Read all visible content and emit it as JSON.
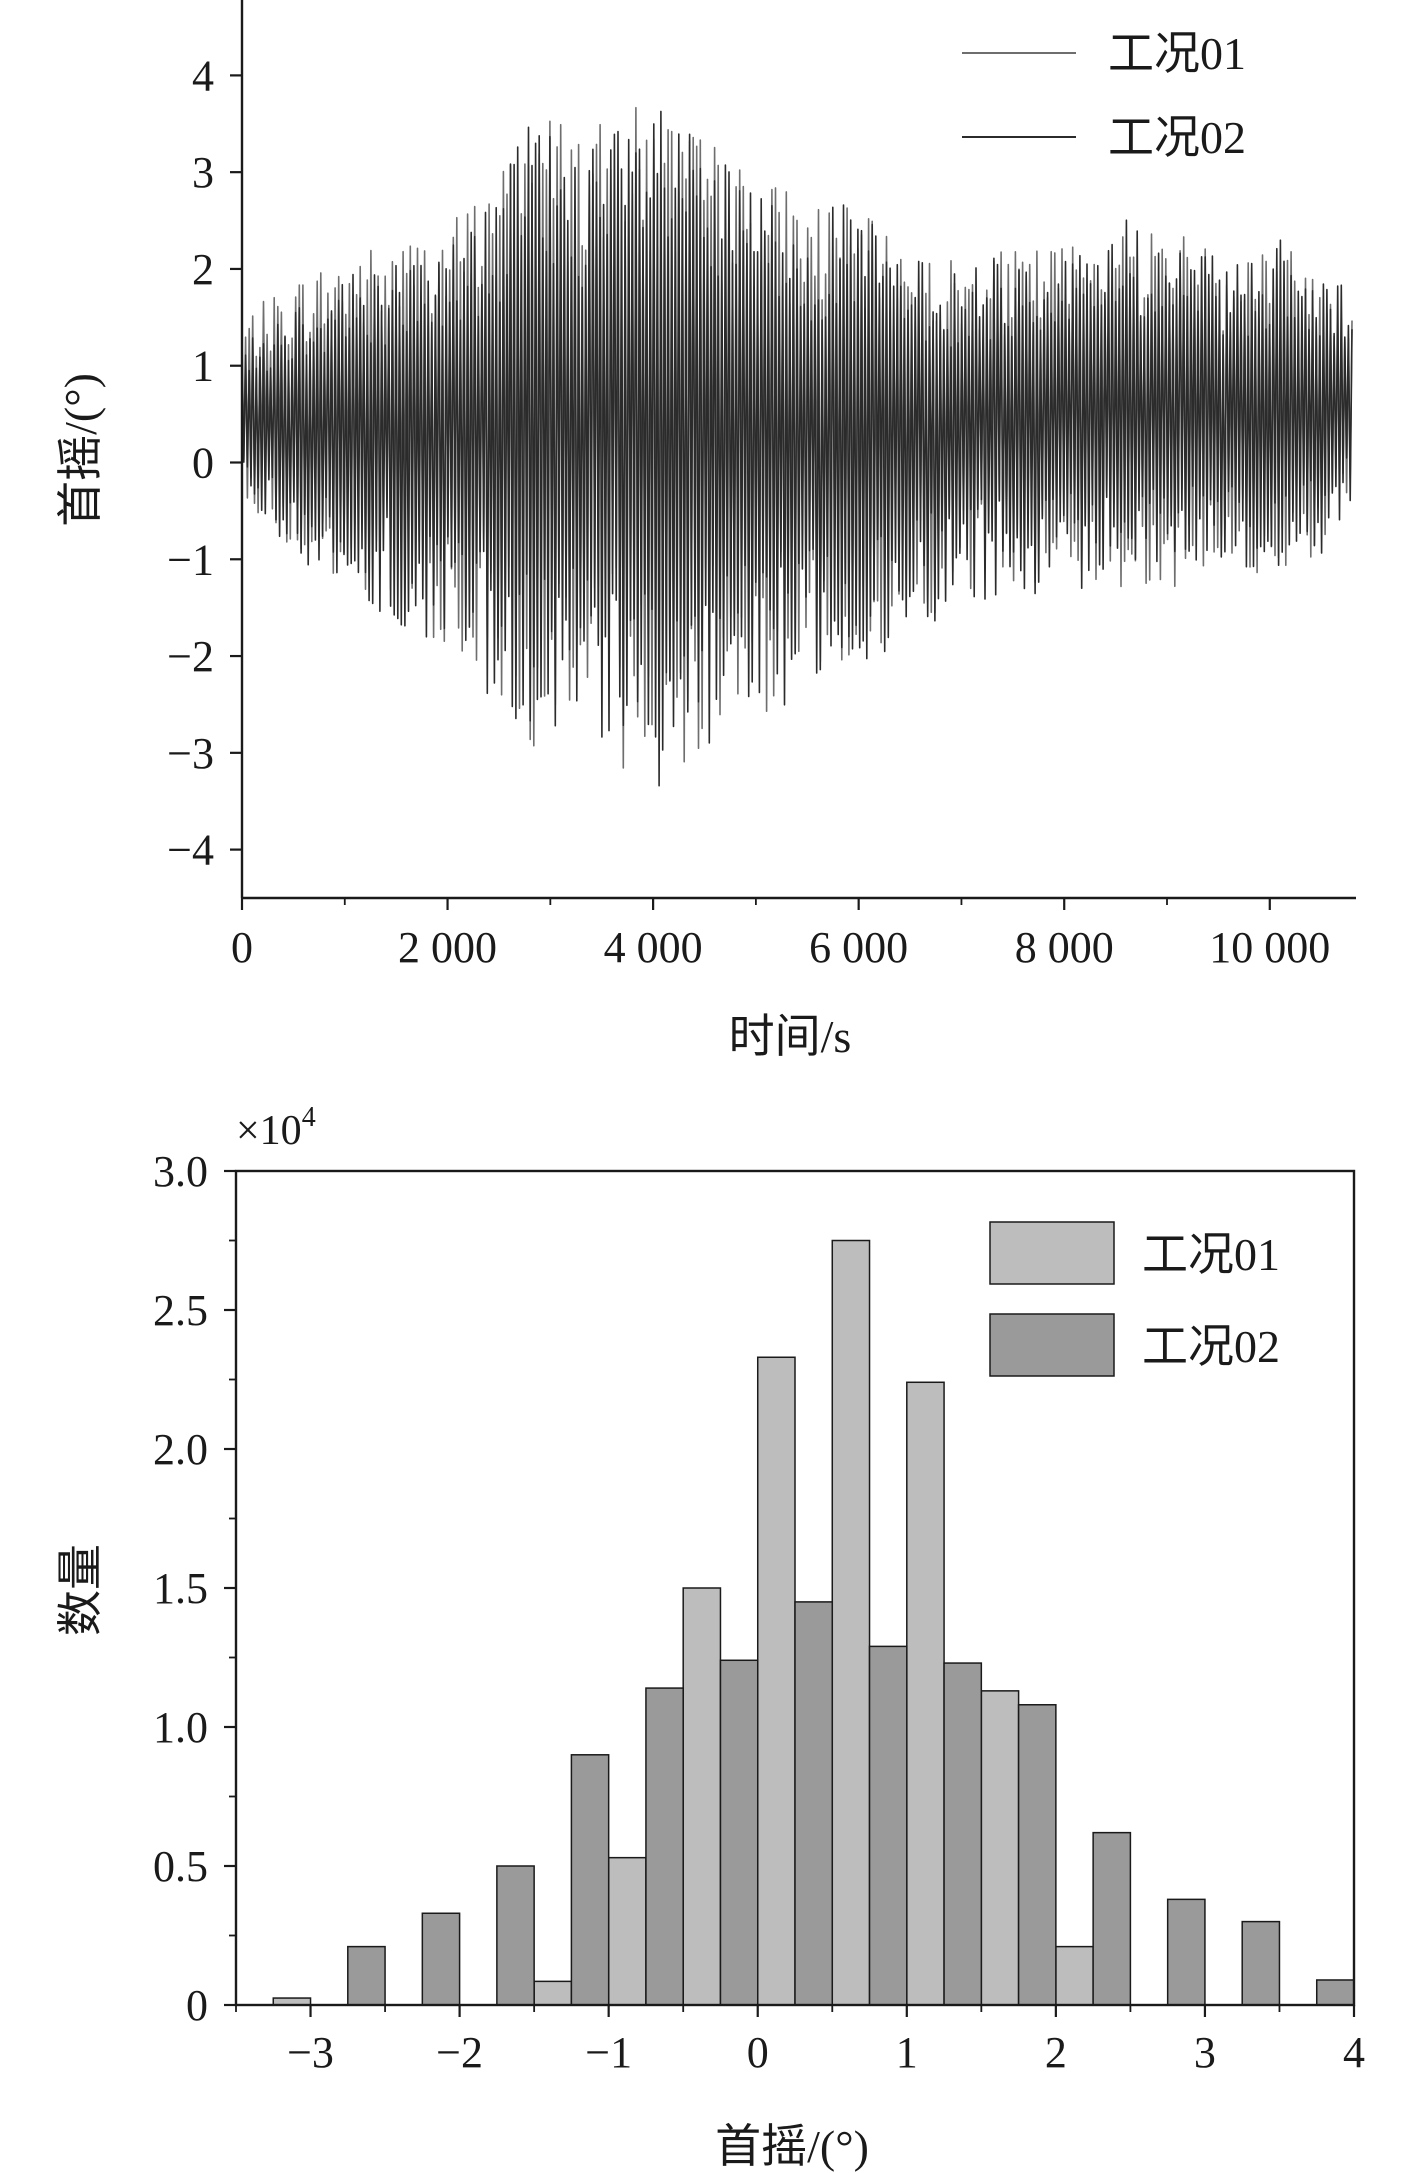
{
  "chart_data": [
    {
      "type": "line",
      "title": "",
      "xlabel": "时间/s",
      "ylabel": "首摇/(°)",
      "xlim": [
        0,
        10800
      ],
      "ylim": [
        -4.5,
        4.5
      ],
      "x_ticks": [
        0,
        2000,
        4000,
        6000,
        8000,
        10000
      ],
      "x_tick_labels": [
        "0",
        "2 000",
        "4 000",
        "6 000",
        "8 000",
        "10 000"
      ],
      "y_ticks": [
        -4,
        -3,
        -2,
        -1,
        0,
        1,
        2,
        3,
        4
      ],
      "y_tick_labels": [
        "−4",
        "−3",
        "−2",
        "−1",
        "0",
        "1",
        "2",
        "3",
        "4"
      ],
      "legend_position": "top-right",
      "grid": false,
      "series": [
        {
          "name": "工况01",
          "color": "#6e6e6e",
          "envelope_x": [
            0,
            500,
            1000,
            1500,
            2000,
            2500,
            2800,
            3000,
            3500,
            4000,
            4500,
            5000,
            5500,
            6000,
            6500,
            7000,
            7500,
            8000,
            8500,
            9000,
            9500,
            10000,
            10500,
            10800
          ],
          "envelope_upper": [
            1.5,
            1.9,
            2.2,
            2.3,
            2.5,
            3.0,
            3.9,
            3.7,
            3.5,
            3.8,
            3.4,
            3.0,
            2.8,
            2.6,
            2.2,
            2.1,
            2.2,
            2.3,
            2.4,
            2.5,
            2.2,
            2.4,
            2.0,
            1.9
          ],
          "envelope_lower": [
            -0.3,
            -1.0,
            -1.4,
            -1.6,
            -1.9,
            -2.5,
            -3.0,
            -2.8,
            -3.1,
            -3.3,
            -3.0,
            -2.7,
            -2.2,
            -2.0,
            -1.7,
            -1.5,
            -1.3,
            -1.2,
            -1.3,
            -1.3,
            -1.2,
            -1.2,
            -1.0,
            -0.6
          ],
          "mean": 0.6
        },
        {
          "name": "工况02",
          "color": "#2b2b2b",
          "envelope_x": [
            0,
            500,
            1000,
            1500,
            2000,
            2500,
            2800,
            3000,
            3500,
            4000,
            4500,
            5000,
            5500,
            6000,
            6500,
            7000,
            7500,
            8000,
            8500,
            9000,
            9500,
            10000,
            10500,
            10800
          ],
          "envelope_upper": [
            1.2,
            1.7,
            2.0,
            2.1,
            2.3,
            2.8,
            3.8,
            3.5,
            3.3,
            3.9,
            3.2,
            2.9,
            2.6,
            2.7,
            2.1,
            2.0,
            2.2,
            2.2,
            2.6,
            2.4,
            2.1,
            2.4,
            1.9,
            1.8
          ],
          "envelope_lower": [
            -0.2,
            -1.2,
            -1.5,
            -1.7,
            -2.0,
            -2.7,
            -3.1,
            -2.9,
            -3.2,
            -3.4,
            -3.0,
            -2.8,
            -2.4,
            -2.2,
            -1.8,
            -1.5,
            -1.4,
            -1.3,
            -1.3,
            -1.2,
            -1.1,
            -1.1,
            -1.0,
            -0.4
          ],
          "mean": 0.5
        }
      ]
    },
    {
      "type": "bar",
      "title": "",
      "xlabel": "首摇/(°)",
      "ylabel": "数量",
      "y_multiplier": "×10",
      "y_multiplier_exp": "4",
      "xlim": [
        -3.5,
        4
      ],
      "ylim": [
        0,
        3.0
      ],
      "x_ticks": [
        -3,
        -2,
        -1,
        0,
        1,
        2,
        3,
        4
      ],
      "x_tick_labels": [
        "−3",
        "−2",
        "−1",
        "0",
        "1",
        "2",
        "3",
        "4"
      ],
      "y_ticks": [
        0,
        0.5,
        1.0,
        1.5,
        2.0,
        2.5,
        3.0
      ],
      "y_tick_labels": [
        "0",
        "0.5",
        "1.0",
        "1.5",
        "2.0",
        "2.5",
        "3.0"
      ],
      "legend_position": "top-right",
      "grid": false,
      "bin_width": 0.25,
      "series": [
        {
          "name": "工况01",
          "color": "#bdbdbd",
          "bin_starts": [
            -3.25,
            -1.5,
            -1.0,
            -0.5,
            0.0,
            0.5,
            1.0,
            1.5,
            2.0
          ],
          "values": [
            0.025,
            0.085,
            0.53,
            1.5,
            2.33,
            2.75,
            2.24,
            1.13,
            0.21
          ]
        },
        {
          "name": "工况02",
          "color": "#9a9a9a",
          "bin_starts": [
            -2.75,
            -2.25,
            -1.75,
            -1.25,
            -0.75,
            -0.25,
            0.25,
            0.75,
            1.25,
            1.75,
            2.25,
            2.75,
            3.25,
            3.75
          ],
          "values": [
            0.21,
            0.33,
            0.5,
            0.9,
            1.14,
            1.24,
            1.45,
            1.29,
            1.23,
            1.08,
            0.62,
            0.38,
            0.3,
            0.09
          ]
        }
      ]
    }
  ]
}
